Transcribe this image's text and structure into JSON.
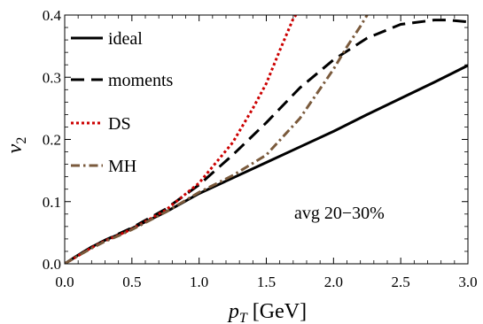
{
  "chart_data": {
    "type": "line",
    "xlabel": {
      "var": "p",
      "sub": "T",
      "unit": " [GeV]"
    },
    "ylabel": {
      "var": "v",
      "sub": "2"
    },
    "xlim": [
      0.0,
      3.0
    ],
    "ylim": [
      0.0,
      0.4
    ],
    "x_ticks": [
      "0.0",
      "0.5",
      "1.0",
      "1.5",
      "2.0",
      "2.5",
      "3.0"
    ],
    "y_ticks": [
      "0.0",
      "0.1",
      "0.2",
      "0.3",
      "0.4"
    ],
    "annotation": "avg 20−30%",
    "legend_position": "top-left",
    "grid": false,
    "series": [
      {
        "name": "ideal",
        "color": "#000000",
        "dash": "solid",
        "x": [
          0,
          0.1,
          0.2,
          0.3,
          0.4,
          0.5,
          0.75,
          1.0,
          1.25,
          1.5,
          1.75,
          2.0,
          2.25,
          2.5,
          2.75,
          3.0
        ],
        "y": [
          0,
          0.014,
          0.027,
          0.038,
          0.047,
          0.057,
          0.083,
          0.113,
          0.138,
          0.163,
          0.188,
          0.213,
          0.24,
          0.266,
          0.292,
          0.319
        ]
      },
      {
        "name": "moments",
        "color": "#000000",
        "dash": "long-dash",
        "x": [
          0,
          0.1,
          0.2,
          0.3,
          0.4,
          0.5,
          0.75,
          1.0,
          1.25,
          1.5,
          1.75,
          2.0,
          2.25,
          2.5,
          2.75,
          2.85,
          3.0
        ],
        "y": [
          0,
          0.014,
          0.027,
          0.038,
          0.048,
          0.058,
          0.088,
          0.127,
          0.175,
          0.227,
          0.283,
          0.328,
          0.363,
          0.385,
          0.392,
          0.392,
          0.389
        ]
      },
      {
        "name": "DS",
        "color": "#cc0000",
        "dash": "dotted",
        "x": [
          0,
          0.1,
          0.2,
          0.3,
          0.4,
          0.5,
          0.75,
          1.0,
          1.25,
          1.4,
          1.5,
          1.6,
          1.7,
          1.72
        ],
        "y": [
          0,
          0.013,
          0.026,
          0.037,
          0.046,
          0.056,
          0.086,
          0.13,
          0.195,
          0.25,
          0.29,
          0.343,
          0.394,
          0.4
        ]
      },
      {
        "name": "MH",
        "color": "#7a5a3c",
        "dash": "dash-dot",
        "x": [
          0,
          0.1,
          0.2,
          0.3,
          0.4,
          0.5,
          0.75,
          1.0,
          1.25,
          1.5,
          1.75,
          2.0,
          2.1,
          2.2,
          2.25
        ],
        "y": [
          0,
          0.013,
          0.025,
          0.036,
          0.045,
          0.055,
          0.083,
          0.115,
          0.142,
          0.175,
          0.234,
          0.313,
          0.349,
          0.382,
          0.4
        ]
      }
    ]
  }
}
